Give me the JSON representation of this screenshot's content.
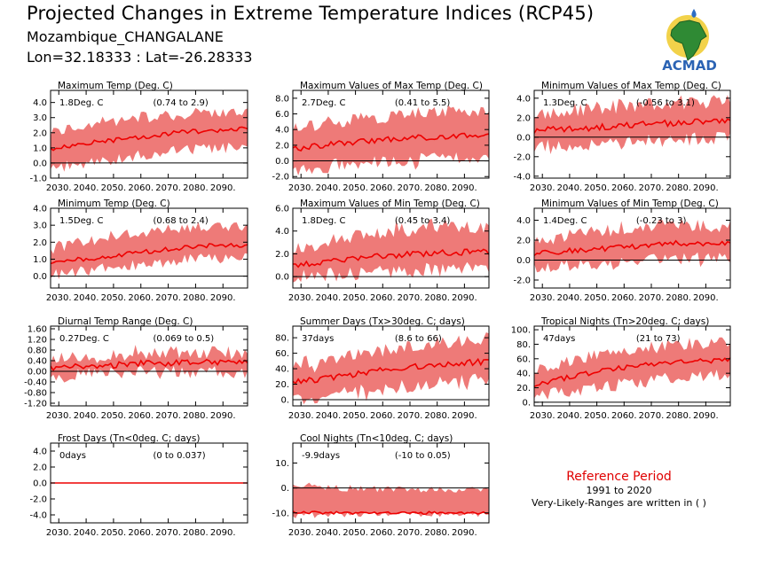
{
  "header": {
    "title": "Projected Changes in Extreme Temperature Indices (RCP45)",
    "location": "Mozambique_CHANGALANE",
    "coords": "Lon=32.18333 : Lat=-26.28333"
  },
  "logo": {
    "text": "ACMAD",
    "icon": "africa-map-logo-icon"
  },
  "reference": {
    "title": "Reference Period",
    "years": "1991 to 2020",
    "note": "Very-Likely-Ranges are written in ( )"
  },
  "colors": {
    "band": "#ee7a78",
    "line": "#ee0000",
    "accent": "#e00000"
  },
  "chart_data": [
    {
      "type": "area",
      "title": "Maximum Temp (Deg. C)",
      "median_label": "1.8Deg. C",
      "range_label": "(0.74 to 2.9)",
      "ylim": [
        -1.0,
        4.8
      ],
      "yticks": [
        "4.0",
        "3.0",
        "2.0",
        "1.0",
        "0.0",
        "-1.0"
      ],
      "ytick_values": [
        4,
        3,
        2,
        1,
        0,
        -1
      ],
      "x_range": [
        2027,
        2099
      ],
      "xticks": [
        "2030.",
        "2040.",
        "2050.",
        "2060.",
        "2070.",
        "2080.",
        "2090."
      ],
      "median_anchors": [
        [
          2027,
          0.9
        ],
        [
          2040,
          1.3
        ],
        [
          2055,
          1.6
        ],
        [
          2070,
          1.95
        ],
        [
          2085,
          2.15
        ],
        [
          2099,
          2.25
        ]
      ],
      "band_low": [
        [
          2027,
          -0.3
        ],
        [
          2040,
          -0.1
        ],
        [
          2060,
          0.5
        ],
        [
          2080,
          0.9
        ],
        [
          2099,
          1.0
        ]
      ],
      "band_high": [
        [
          2027,
          2.0
        ],
        [
          2040,
          2.6
        ],
        [
          2060,
          3.0
        ],
        [
          2080,
          3.3
        ],
        [
          2099,
          3.3
        ]
      ],
      "noise": 0.35,
      "seed": 11
    },
    {
      "type": "area",
      "title": "Maximum Values of Max Temp (Deg. C)",
      "median_label": "2.7Deg. C",
      "range_label": "(0.41 to 5.5)",
      "ylim": [
        -2.2,
        9.0
      ],
      "yticks": [
        "8.0",
        "6.0",
        "4.0",
        "2.0",
        "0.0",
        "-2.0"
      ],
      "ytick_values": [
        8,
        6,
        4,
        2,
        0,
        -2
      ],
      "x_range": [
        2027,
        2099
      ],
      "xticks": [
        "2030.",
        "2040.",
        "2050.",
        "2060.",
        "2070.",
        "2080.",
        "2090."
      ],
      "median_anchors": [
        [
          2027,
          1.5
        ],
        [
          2045,
          2.3
        ],
        [
          2060,
          2.7
        ],
        [
          2080,
          3.1
        ],
        [
          2099,
          3.3
        ]
      ],
      "band_low": [
        [
          2027,
          -1.2
        ],
        [
          2050,
          -0.3
        ],
        [
          2075,
          0.3
        ],
        [
          2099,
          0.6
        ]
      ],
      "band_high": [
        [
          2027,
          4.2
        ],
        [
          2050,
          5.3
        ],
        [
          2075,
          6.2
        ],
        [
          2099,
          6.3
        ]
      ],
      "noise": 0.8,
      "seed": 23
    },
    {
      "type": "area",
      "title": "Minimum Values of Max Temp (Deg. C)",
      "median_label": "1.3Deg. C",
      "range_label": "(-0.56 to 3.1)",
      "ylim": [
        -4.2,
        4.8
      ],
      "yticks": [
        "4.0",
        "2.0",
        "0.0",
        "-2.0",
        "-4.0"
      ],
      "ytick_values": [
        4,
        2,
        0,
        -2,
        -4
      ],
      "x_range": [
        2027,
        2099
      ],
      "xticks": [
        "2030.",
        "2040.",
        "2050.",
        "2060.",
        "2070.",
        "2080.",
        "2090."
      ],
      "median_anchors": [
        [
          2027,
          0.7
        ],
        [
          2045,
          0.9
        ],
        [
          2060,
          1.2
        ],
        [
          2080,
          1.5
        ],
        [
          2099,
          1.7
        ]
      ],
      "band_low": [
        [
          2027,
          -1.0
        ],
        [
          2045,
          -1.0
        ],
        [
          2070,
          -0.4
        ],
        [
          2099,
          0.0
        ]
      ],
      "band_high": [
        [
          2027,
          2.4
        ],
        [
          2050,
          3.0
        ],
        [
          2075,
          3.5
        ],
        [
          2099,
          3.6
        ]
      ],
      "noise": 0.7,
      "seed": 37
    },
    {
      "type": "area",
      "title": "Minimum Temp (Deg. C)",
      "median_label": "1.5Deg. C",
      "range_label": "(0.68 to 2.4)",
      "ylim": [
        -0.7,
        4.0
      ],
      "yticks": [
        "4.0",
        "3.0",
        "2.0",
        "1.0",
        "0.0"
      ],
      "ytick_values": [
        4,
        3,
        2,
        1,
        0
      ],
      "x_range": [
        2027,
        2099
      ],
      "xticks": [
        "2030.",
        "2040.",
        "2050.",
        "2060.",
        "2070.",
        "2080.",
        "2090."
      ],
      "median_anchors": [
        [
          2027,
          0.8
        ],
        [
          2045,
          1.1
        ],
        [
          2060,
          1.4
        ],
        [
          2080,
          1.75
        ],
        [
          2099,
          1.85
        ]
      ],
      "band_low": [
        [
          2027,
          0.1
        ],
        [
          2050,
          0.5
        ],
        [
          2080,
          1.0
        ],
        [
          2099,
          1.1
        ]
      ],
      "band_high": [
        [
          2027,
          1.6
        ],
        [
          2050,
          2.4
        ],
        [
          2080,
          2.9
        ],
        [
          2099,
          3.0
        ]
      ],
      "noise": 0.3,
      "seed": 41
    },
    {
      "type": "area",
      "title": "Maximum Values of Min Temp (Deg. C)",
      "median_label": "1.8Deg. C",
      "range_label": "(0.45 to 3.4)",
      "ylim": [
        -1.0,
        6.0
      ],
      "yticks": [
        "6.0",
        "4.0",
        "2.0",
        "0.0"
      ],
      "ytick_values": [
        6,
        4,
        2,
        0
      ],
      "x_range": [
        2027,
        2099
      ],
      "xticks": [
        "2030.",
        "2040.",
        "2050.",
        "2060.",
        "2070.",
        "2080.",
        "2090."
      ],
      "median_anchors": [
        [
          2027,
          1.0
        ],
        [
          2045,
          1.5
        ],
        [
          2060,
          1.8
        ],
        [
          2080,
          2.1
        ],
        [
          2099,
          2.2
        ]
      ],
      "band_low": [
        [
          2027,
          0.0
        ],
        [
          2050,
          0.2
        ],
        [
          2080,
          0.6
        ],
        [
          2099,
          0.8
        ]
      ],
      "band_high": [
        [
          2027,
          2.4
        ],
        [
          2050,
          3.6
        ],
        [
          2080,
          4.5
        ],
        [
          2099,
          4.3
        ]
      ],
      "noise": 0.6,
      "seed": 53
    },
    {
      "type": "area",
      "title": "Minimum Values of Min Temp (Deg. C)",
      "median_label": "1.4Deg. C",
      "range_label": "(-0.23 to 3)",
      "ylim": [
        -2.8,
        5.2
      ],
      "yticks": [
        "4.0",
        "2.0",
        "0.0",
        "-2.0"
      ],
      "ytick_values": [
        4,
        2,
        0,
        -2
      ],
      "x_range": [
        2027,
        2099
      ],
      "xticks": [
        "2030.",
        "2040.",
        "2050.",
        "2060.",
        "2070.",
        "2080.",
        "2090."
      ],
      "median_anchors": [
        [
          2027,
          0.7
        ],
        [
          2045,
          1.0
        ],
        [
          2060,
          1.3
        ],
        [
          2080,
          1.7
        ],
        [
          2099,
          1.7
        ]
      ],
      "band_low": [
        [
          2027,
          -0.6
        ],
        [
          2050,
          -0.4
        ],
        [
          2080,
          0.2
        ],
        [
          2099,
          0.4
        ]
      ],
      "band_high": [
        [
          2027,
          2.0
        ],
        [
          2050,
          2.8
        ],
        [
          2080,
          3.6
        ],
        [
          2099,
          3.4
        ]
      ],
      "noise": 0.6,
      "seed": 67
    },
    {
      "type": "area",
      "title": "Diurnal Temp Range (Deg. C)",
      "median_label": "0.27Deg. C",
      "range_label": "(0.069 to 0.5)",
      "ylim": [
        -1.3,
        1.7
      ],
      "yticks": [
        "1.60",
        "1.20",
        "0.80",
        "0.40",
        "0.00",
        "-0.40",
        "-0.80",
        "-1.20"
      ],
      "ytick_values": [
        1.6,
        1.2,
        0.8,
        0.4,
        0,
        -0.4,
        -0.8,
        -1.2
      ],
      "x_range": [
        2027,
        2099
      ],
      "xticks": [
        "2030.",
        "2040.",
        "2050.",
        "2060.",
        "2070.",
        "2080.",
        "2090."
      ],
      "median_anchors": [
        [
          2027,
          0.15
        ],
        [
          2045,
          0.2
        ],
        [
          2060,
          0.3
        ],
        [
          2080,
          0.33
        ],
        [
          2099,
          0.33
        ]
      ],
      "band_low": [
        [
          2027,
          -0.2
        ],
        [
          2050,
          -0.1
        ],
        [
          2080,
          0.0
        ],
        [
          2099,
          0.0
        ]
      ],
      "band_high": [
        [
          2027,
          0.4
        ],
        [
          2050,
          0.6
        ],
        [
          2080,
          0.75
        ],
        [
          2099,
          0.7
        ]
      ],
      "noise": 0.25,
      "seed": 71
    },
    {
      "type": "area",
      "title": "Summer Days (Tx>30deg. C; days)",
      "median_label": "37days",
      "range_label": "(8.6 to 66)",
      "ylim": [
        -8,
        95
      ],
      "yticks": [
        "80.",
        "60.",
        "40.",
        "20.",
        "0."
      ],
      "ytick_values": [
        80,
        60,
        40,
        20,
        0
      ],
      "x_range": [
        2027,
        2099
      ],
      "xticks": [
        "2030.",
        "2040.",
        "2050.",
        "2060.",
        "2070.",
        "2080.",
        "2090."
      ],
      "median_anchors": [
        [
          2027,
          22
        ],
        [
          2045,
          30
        ],
        [
          2060,
          38
        ],
        [
          2080,
          45
        ],
        [
          2099,
          50
        ]
      ],
      "band_low": [
        [
          2027,
          2
        ],
        [
          2050,
          10
        ],
        [
          2080,
          20
        ],
        [
          2099,
          25
        ]
      ],
      "band_high": [
        [
          2027,
          45
        ],
        [
          2050,
          60
        ],
        [
          2080,
          75
        ],
        [
          2099,
          80
        ]
      ],
      "noise": 9,
      "seed": 83
    },
    {
      "type": "area",
      "title": "Tropical Nights (Tn>20deg. C; days)",
      "median_label": "47days",
      "range_label": "(21 to 73)",
      "ylim": [
        -5,
        105
      ],
      "yticks": [
        "100.",
        "80.",
        "60.",
        "40.",
        "20.",
        "0."
      ],
      "ytick_values": [
        100,
        80,
        60,
        40,
        20,
        0
      ],
      "x_range": [
        2027,
        2099
      ],
      "xticks": [
        "2030.",
        "2040.",
        "2050.",
        "2060.",
        "2070.",
        "2080.",
        "2090."
      ],
      "median_anchors": [
        [
          2027,
          25
        ],
        [
          2045,
          38
        ],
        [
          2060,
          48
        ],
        [
          2080,
          55
        ],
        [
          2099,
          58
        ]
      ],
      "band_low": [
        [
          2027,
          10
        ],
        [
          2050,
          20
        ],
        [
          2080,
          35
        ],
        [
          2099,
          38
        ]
      ],
      "band_high": [
        [
          2027,
          45
        ],
        [
          2050,
          65
        ],
        [
          2080,
          80
        ],
        [
          2099,
          82
        ]
      ],
      "noise": 8,
      "seed": 97
    },
    {
      "type": "area",
      "title": "Frost Days (Tn<0deg. C; days)",
      "median_label": "0days",
      "range_label": "(0 to 0.037)",
      "ylim": [
        -5.0,
        5.0
      ],
      "yticks": [
        "4.0",
        "2.0",
        "0.0",
        "-2.0",
        "-4.0"
      ],
      "ytick_values": [
        4,
        2,
        0,
        -2,
        -4
      ],
      "x_range": [
        2027,
        2099
      ],
      "xticks": [
        "2030.",
        "2040.",
        "2050.",
        "2060.",
        "2070.",
        "2080.",
        "2090."
      ],
      "median_anchors": [
        [
          2027,
          0
        ],
        [
          2099,
          0
        ]
      ],
      "band_low": [
        [
          2027,
          0
        ],
        [
          2099,
          0
        ]
      ],
      "band_high": [
        [
          2027,
          0.05
        ],
        [
          2099,
          0.05
        ]
      ],
      "noise": 0,
      "seed": 101
    },
    {
      "type": "area",
      "title": "Cool Nights (Tn<10deg. C; days)",
      "median_label": "-9.9days",
      "range_label": "(-10 to 0.05)",
      "ylim": [
        -14,
        18
      ],
      "yticks": [
        "10.",
        "0.",
        "-10."
      ],
      "ytick_values": [
        10,
        0,
        -10
      ],
      "x_range": [
        2027,
        2099
      ],
      "xticks": [
        "2030.",
        "2040.",
        "2050.",
        "2060.",
        "2070.",
        "2080.",
        "2090."
      ],
      "median_anchors": [
        [
          2027,
          -9.5
        ],
        [
          2033,
          -9.8
        ],
        [
          2040,
          -10
        ],
        [
          2099,
          -10
        ]
      ],
      "band_low": [
        [
          2027,
          -10.5
        ],
        [
          2099,
          -10.3
        ]
      ],
      "band_high": [
        [
          2027,
          2.0
        ],
        [
          2040,
          0.0
        ],
        [
          2099,
          -1.0
        ]
      ],
      "noise": 1.2,
      "seed": 113
    }
  ]
}
